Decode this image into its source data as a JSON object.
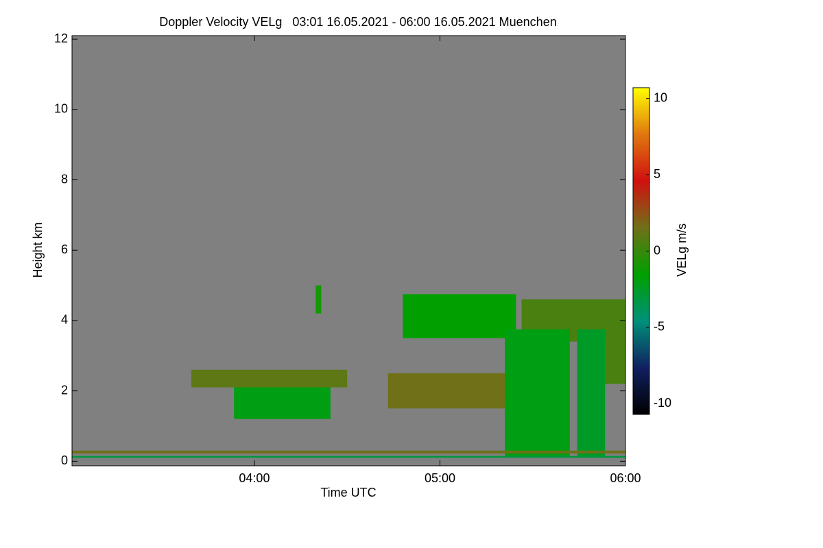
{
  "chart_data": {
    "type": "heatmap",
    "title": "Doppler Velocity VELg   03:01 16.05.2021 - 06:00 16.05.2021 Muenchen",
    "x_label": "Time UTC",
    "y_label": "Height km",
    "colorbar_label": "VELg m/s",
    "xlim": [
      3.017,
      6.0
    ],
    "xticks": [
      {
        "value": 4,
        "label": "04:00"
      },
      {
        "value": 5,
        "label": "05:00"
      },
      {
        "value": 6,
        "label": "06:00"
      }
    ],
    "ylim": [
      -0.13,
      12.1
    ],
    "yticks": [
      0,
      2,
      4,
      6,
      8,
      10,
      12
    ],
    "clim": [
      -10.7,
      10.7
    ],
    "cticks": [
      -10,
      -5,
      0,
      5,
      10
    ],
    "colormap": [
      "#000000",
      "#102060",
      "#00907a",
      "#00a000",
      "#707018",
      "#d01010",
      "#e07810",
      "#ffff00"
    ],
    "background": "#808080",
    "cells": {
      "x0": [
        3.66,
        3.89,
        4.33,
        4.8,
        5.44,
        4.72,
        5.35,
        5.74,
        5.89,
        3.017,
        3.017
      ],
      "x1": [
        4.5,
        4.41,
        4.36,
        5.41,
        6.0,
        5.37,
        5.7,
        5.89,
        6.0,
        6.0,
        6.0
      ],
      "y0": [
        2.1,
        1.2,
        4.2,
        3.5,
        3.4,
        1.5,
        0.15,
        0.1,
        2.2,
        0.22,
        0.1
      ],
      "y1": [
        2.6,
        2.1,
        5.0,
        4.75,
        4.6,
        2.5,
        3.75,
        3.75,
        4.5,
        0.3,
        0.15
      ],
      "values": [
        1,
        -2,
        -1,
        -1.5,
        0.5,
        1.5,
        -2,
        -2.5,
        0.5,
        1.5,
        -3
      ]
    }
  }
}
